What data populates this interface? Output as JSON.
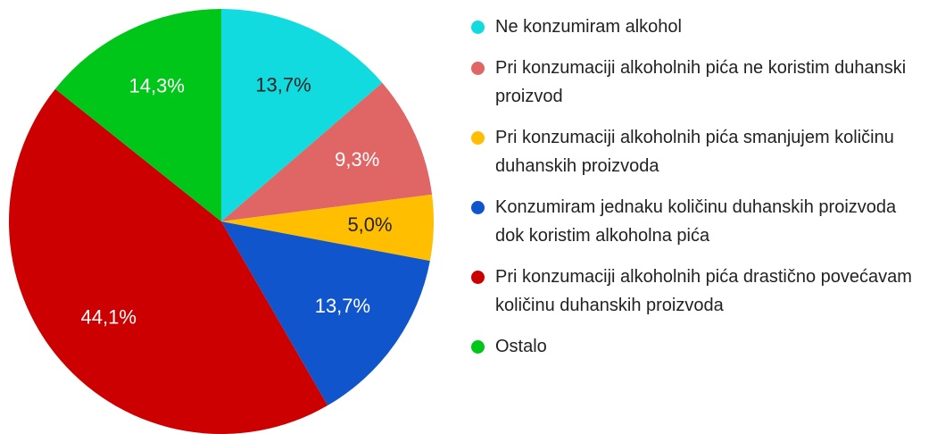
{
  "chart_data": {
    "type": "pie",
    "categories": [
      "Ne konzumiram alkohol",
      "Pri konzumaciji alkoholnih pića ne koristim duhanski proizvod",
      "Pri konzumaciji alkoholnih pića smanjujem količinu duhanskih proizvoda",
      "Konzumiram jednaku količinu duhanskih proizvoda dok koristim alkoholna pića",
      "Pri konzumaciji alkoholnih pića drastično povećavam količinu duhanskih proizvoda",
      "Ostalo"
    ],
    "values": [
      13.7,
      9.3,
      5.0,
      13.7,
      44.1,
      14.3
    ],
    "value_labels": [
      "13,7%",
      "9,3%",
      "5,0%",
      "13,7%",
      "44,1%",
      "14,3%"
    ],
    "colors": [
      "#12dbe0",
      "#e06666",
      "#ffbf00",
      "#1155cc",
      "#cc0000",
      "#00c61a"
    ],
    "legend": "right"
  }
}
